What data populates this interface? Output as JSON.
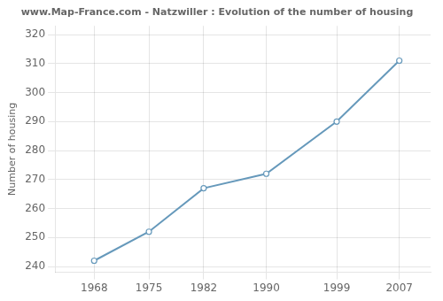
{
  "chart_data": {
    "type": "line",
    "title": "www.Map-France.com - Natzwiller : Evolution of the number of housing",
    "ylabel": "Number of housing",
    "x": [
      1968,
      1975,
      1982,
      1990,
      1999,
      2007
    ],
    "values": [
      242,
      252,
      267,
      272,
      290,
      311
    ],
    "xlim": [
      1963,
      2011
    ],
    "ylim": [
      238,
      323
    ],
    "xticks": [
      1968,
      1975,
      1982,
      1990,
      1999,
      2007
    ],
    "yticks": [
      240,
      250,
      260,
      270,
      280,
      290,
      300,
      310,
      320
    ],
    "grid": true,
    "color": "#6699bb",
    "marker": "circle"
  }
}
